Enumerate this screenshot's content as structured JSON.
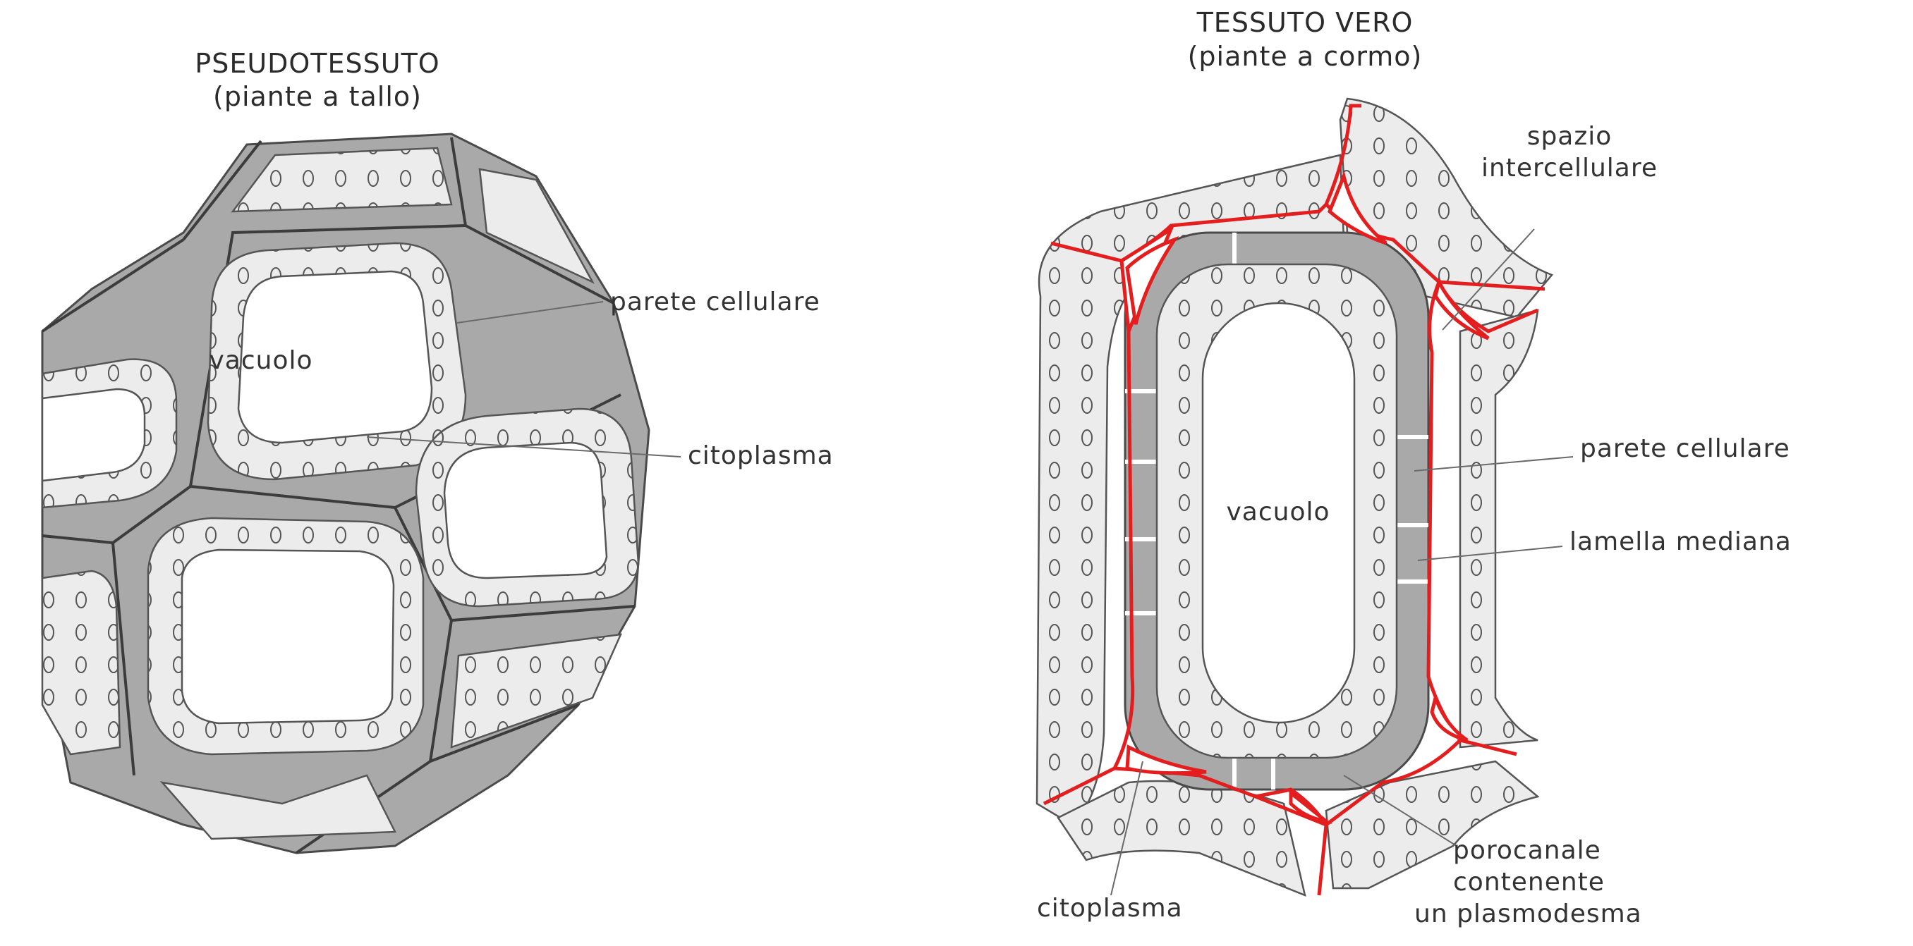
{
  "pseudo": {
    "title": "PSEUDOTESSUTO",
    "subtitle": "(piante a tallo)",
    "labels": {
      "wall": "parete cellulare",
      "vacuole": "vacuolo",
      "cytoplasm": "citoplasma"
    }
  },
  "true_tissue": {
    "title": "TESSUTO VERO",
    "subtitle": "(piante a cormo)",
    "labels": {
      "intercellular_1": "spazio",
      "intercellular_2": "intercellulare",
      "wall": "parete cellulare",
      "vacuole": "vacuolo",
      "middle_lamella": "lamella mediana",
      "cytoplasm": "citoplasma",
      "pore_1": "porocanale",
      "pore_2": "contenente",
      "pore_3": "un plasmodesma"
    }
  },
  "colors": {
    "wall": "#a9a9a9",
    "cytoplasm": "#ececec",
    "middle_lamella": "#e41e1e"
  }
}
